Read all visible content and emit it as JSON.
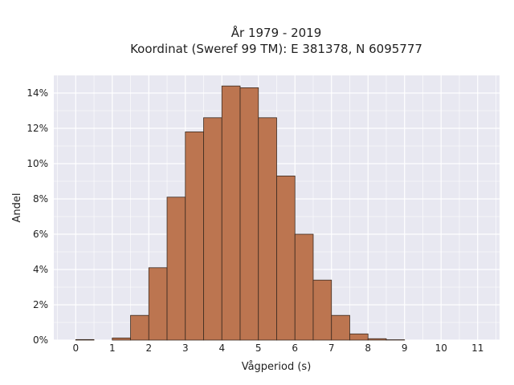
{
  "chart_data": {
    "type": "bar",
    "title_lines": [
      "År 1979 - 2019",
      "Koordinat (Sweref 99 TM): E 381378, N 6095777"
    ],
    "xlabel": "Vågperiod (s)",
    "ylabel": "Andel",
    "bin_width": 0.5,
    "bin_starts": [
      0,
      0.5,
      1,
      1.5,
      2,
      2.5,
      3,
      3.5,
      4,
      4.5,
      5,
      5.5,
      6,
      6.5,
      7,
      7.5,
      8,
      8.5,
      9
    ],
    "values": [
      0.0003,
      0,
      0.0012,
      0.014,
      0.041,
      0.081,
      0.118,
      0.126,
      0.144,
      0.143,
      0.126,
      0.093,
      0.06,
      0.034,
      0.014,
      0.0035,
      0.0008,
      0.0002,
      0
    ],
    "xlim": [
      -0.6,
      11.6
    ],
    "ylim": [
      0,
      0.15
    ],
    "xticks": [
      0,
      1,
      2,
      3,
      4,
      5,
      6,
      7,
      8,
      9,
      10,
      11
    ],
    "xtick_labels": [
      "0",
      "1",
      "2",
      "3",
      "4",
      "5",
      "6",
      "7",
      "8",
      "9",
      "10",
      "11"
    ],
    "yticks": [
      0,
      0.02,
      0.04,
      0.06,
      0.08,
      0.1,
      0.12,
      0.14
    ],
    "ytick_labels": [
      "0%",
      "2%",
      "4%",
      "6%",
      "8%",
      "10%",
      "12%",
      "14%"
    ],
    "grid": true,
    "colors": {
      "bar_fill": "#bc7550",
      "bar_edge": "#3a2a20",
      "plot_bg": "#e8e8f1",
      "grid": "#ffffff"
    }
  }
}
